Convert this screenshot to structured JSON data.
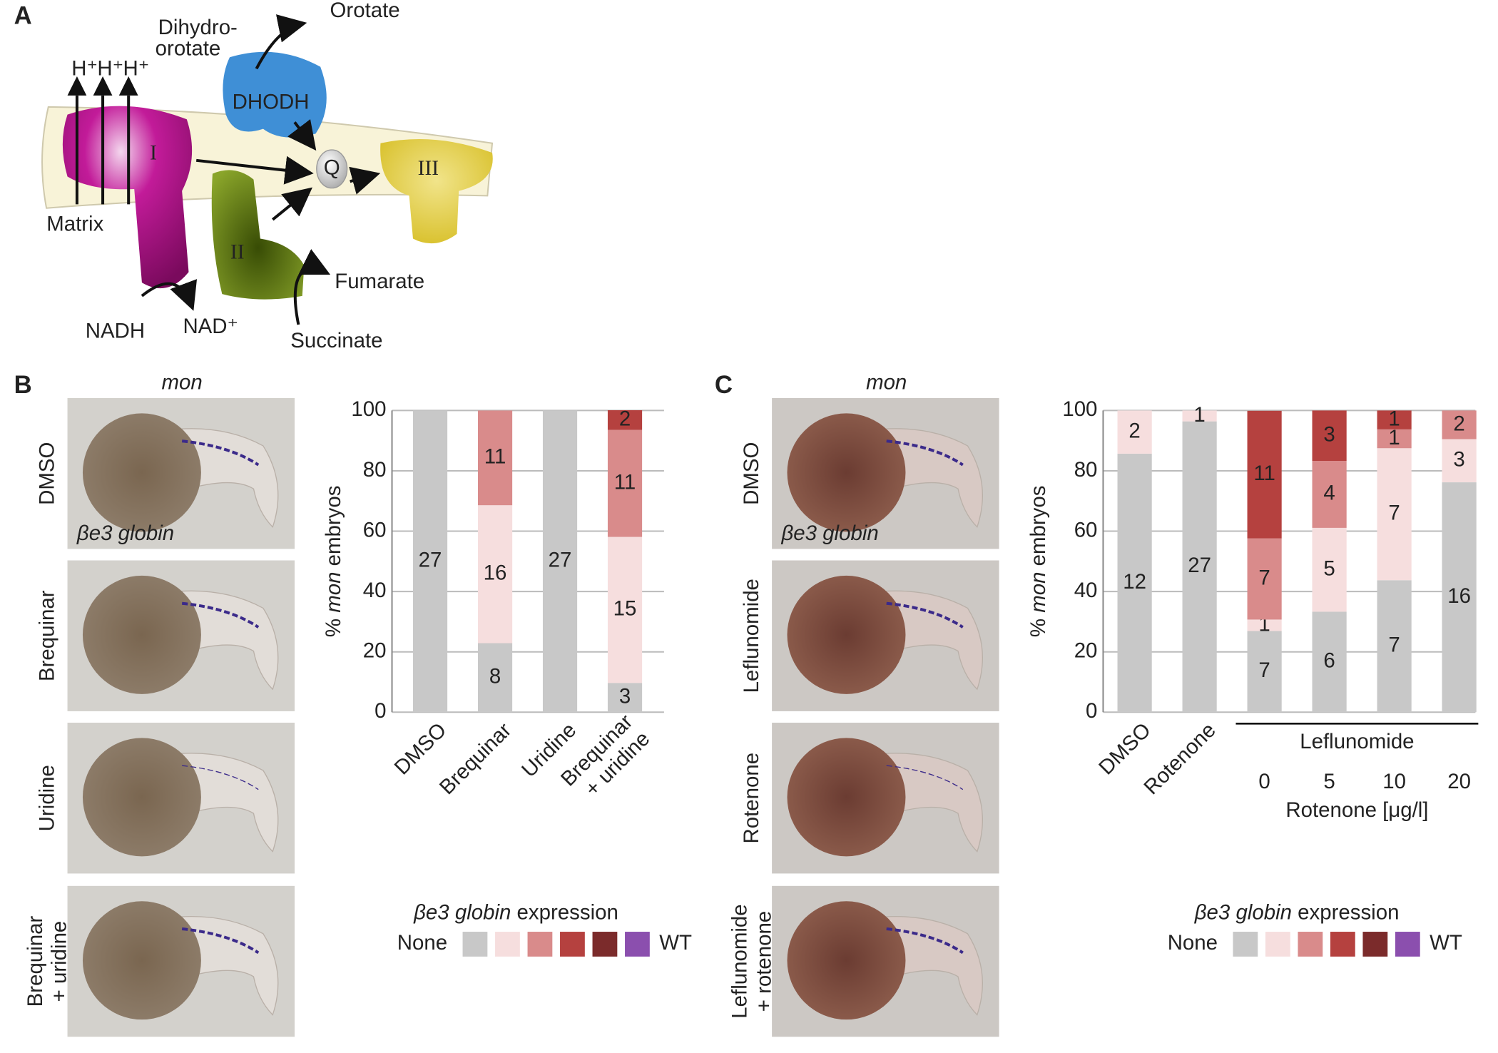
{
  "panel_labels": [
    "A",
    "B",
    "C"
  ],
  "diagram": {
    "orotate": "Orotate",
    "dihydro_1": "Dihydro-",
    "dihydro_2": "orotate",
    "protons": [
      "H⁺",
      "H⁺",
      "H⁺"
    ],
    "dhodh": "DHODH",
    "complex_1": "I",
    "q": "Q",
    "complex_3": "III",
    "complex_2": "II",
    "matrix": "Matrix",
    "fumarate": "Fumarate",
    "nadh": "NADH",
    "nad": "NAD⁺",
    "succinate": "Succinate"
  },
  "photos": [
    {
      "header": "mon",
      "stain": "βe3 globin",
      "rows": [
        "DMSO",
        "Brequinar",
        "Uridine",
        "Brequinar\n+ uridine"
      ]
    },
    {
      "header": "mon",
      "stain": "βe3 globin",
      "rows": [
        "DMSO",
        "Leflunomide",
        "Rotenone",
        "Leflunomide\n+ rotenone"
      ]
    }
  ],
  "chart_data": [
    {
      "type": "stacked_bar",
      "ylabel": [
        "%",
        "mon",
        "embryos"
      ],
      "ylim": [
        0,
        100
      ],
      "yticks": [
        0,
        20,
        40,
        60,
        80,
        100
      ],
      "grid": true,
      "categories": [
        "DMSO",
        "Brequinar",
        "Uridine",
        "Brequinar\n+ uridine"
      ],
      "legend_title": [
        "βe3 globin",
        "expression"
      ],
      "series": [
        {
          "name": "None",
          "color": "#c8c8c8",
          "values": [
            100,
            22.9,
            100,
            9.7
          ],
          "counts": [
            27,
            8,
            27,
            3
          ]
        },
        {
          "color": "#f6dede",
          "values": [
            null,
            45.7,
            null,
            48.4
          ],
          "counts": [
            null,
            16,
            null,
            15
          ]
        },
        {
          "color": "#d98b8b",
          "values": [
            null,
            31.4,
            null,
            35.5
          ],
          "counts": [
            null,
            11,
            null,
            11
          ]
        },
        {
          "color": "#b5413f",
          "values": [
            null,
            null,
            null,
            6.5
          ],
          "counts": [
            null,
            null,
            null,
            2
          ]
        },
        {
          "color": "#7b2b2b",
          "values": [
            null,
            null,
            null,
            null
          ]
        },
        {
          "name": "WT",
          "color": "#8b4fae",
          "values": [
            null,
            null,
            null,
            null
          ]
        }
      ]
    },
    {
      "type": "stacked_bar",
      "ylabel": [
        "%",
        "mon",
        "embryos"
      ],
      "ylim": [
        0,
        100
      ],
      "yticks": [
        0,
        20,
        40,
        60,
        80,
        100
      ],
      "grid": true,
      "categories": [
        "DMSO",
        "Rotenone",
        "0",
        "5",
        "10",
        "20"
      ],
      "group_label": "Leflunomide",
      "xlabel": "Rotenone [μg/l]",
      "legend_title": [
        "βe3 globin",
        "expression"
      ],
      "series": [
        {
          "name": "None",
          "color": "#c8c8c8",
          "values": [
            85.7,
            96.4,
            26.9,
            33.3,
            43.75,
            76.2
          ],
          "counts": [
            12,
            27,
            7,
            6,
            7,
            16
          ]
        },
        {
          "color": "#f6dede",
          "values": [
            14.3,
            3.6,
            3.8,
            27.8,
            43.75,
            14.3
          ],
          "counts": [
            2,
            1,
            1,
            5,
            7,
            3
          ]
        },
        {
          "color": "#d98b8b",
          "values": [
            null,
            null,
            26.9,
            22.2,
            6.25,
            9.5
          ],
          "counts": [
            null,
            null,
            7,
            4,
            1,
            2
          ]
        },
        {
          "color": "#b5413f",
          "values": [
            null,
            null,
            42.3,
            16.7,
            6.25,
            null
          ],
          "counts": [
            null,
            null,
            11,
            3,
            1,
            null
          ]
        },
        {
          "color": "#7b2b2b",
          "values": [
            null,
            null,
            null,
            null,
            null,
            null
          ]
        },
        {
          "name": "WT",
          "color": "#8b4fae",
          "values": [
            null,
            null,
            null,
            null,
            null,
            null
          ]
        }
      ]
    }
  ]
}
